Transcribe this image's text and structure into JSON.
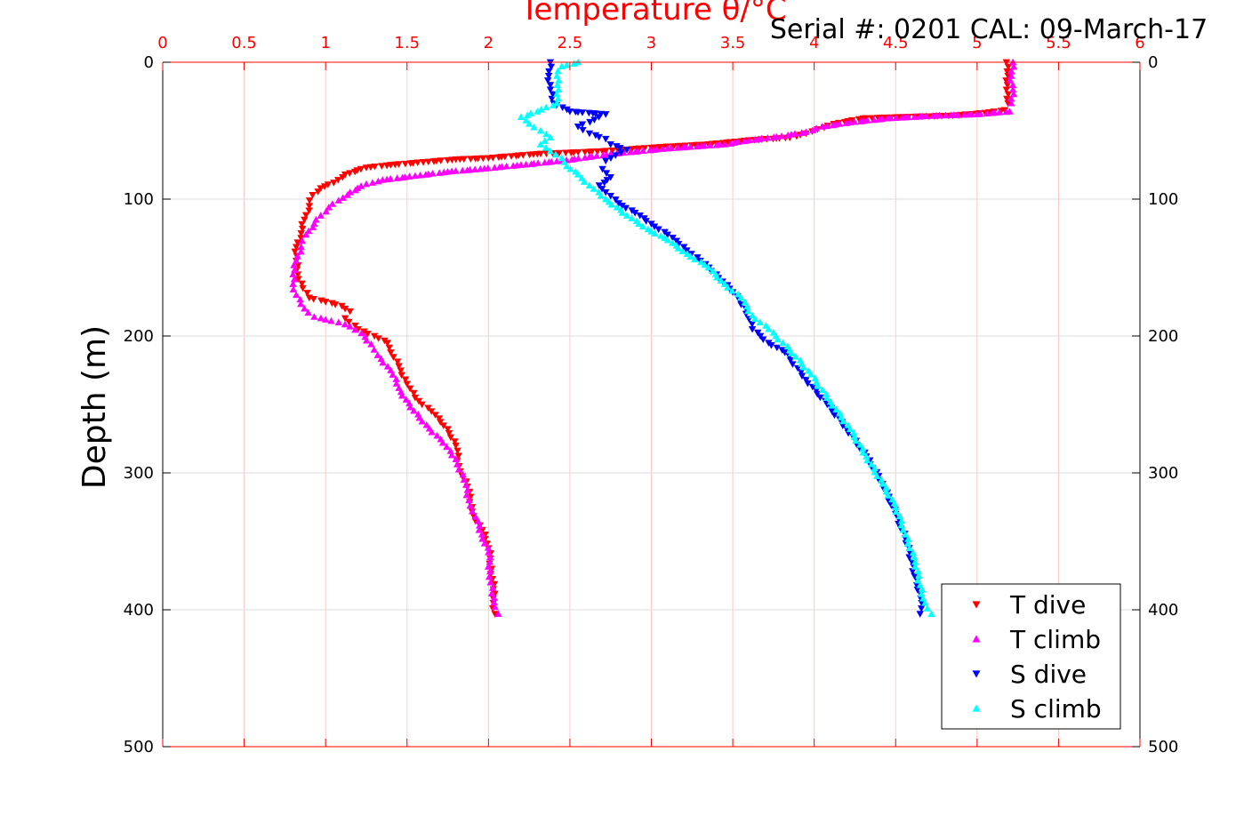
{
  "chart_data": {
    "type": "scatter",
    "title": "Temperature θ/°C",
    "header_text": "Serial #: 0201  CAL: 09-March-17",
    "ylabel": "Depth (m)",
    "xlim": [
      0,
      6
    ],
    "ylim": [
      0,
      500
    ],
    "y_reversed": true,
    "x_ticks": [
      0,
      0.5,
      1,
      1.5,
      2,
      2.5,
      3,
      3.5,
      4,
      4.5,
      5,
      5.5,
      6
    ],
    "x_tick_labels": [
      "0",
      "0.5",
      "1",
      "1.5",
      "2",
      "2.5",
      "3",
      "3.5",
      "4",
      "4.5",
      "5",
      "5.5",
      "6"
    ],
    "y_ticks": [
      0,
      100,
      200,
      300,
      400,
      500
    ],
    "y_tick_labels": [
      "0",
      "100",
      "200",
      "300",
      "400",
      "500"
    ],
    "grid": true,
    "legend_position": "bottom-right",
    "colors": {
      "axis_top": "#ff0000",
      "axis_other": "#000000",
      "x_grid": "#ffc8c8",
      "y_grid": "#dcdcdc"
    },
    "series": [
      {
        "name": "T dive",
        "marker": "triangle-down",
        "color": "#ff0000",
        "points": [
          [
            5.18,
            0
          ],
          [
            5.19,
            10
          ],
          [
            5.18,
            20
          ],
          [
            5.19,
            30
          ],
          [
            5.17,
            35
          ],
          [
            5.05,
            37
          ],
          [
            4.85,
            39
          ],
          [
            4.55,
            40
          ],
          [
            4.3,
            41
          ],
          [
            4.12,
            45
          ],
          [
            4.02,
            49
          ],
          [
            3.95,
            52
          ],
          [
            3.85,
            55
          ],
          [
            3.6,
            57
          ],
          [
            3.35,
            60
          ],
          [
            3.05,
            62
          ],
          [
            2.7,
            65
          ],
          [
            2.3,
            67
          ],
          [
            2.0,
            70
          ],
          [
            1.8,
            71
          ],
          [
            1.6,
            73
          ],
          [
            1.4,
            75
          ],
          [
            1.25,
            77
          ],
          [
            1.12,
            82
          ],
          [
            1.05,
            88
          ],
          [
            0.97,
            92
          ],
          [
            0.92,
            97
          ],
          [
            0.9,
            105
          ],
          [
            0.87,
            115
          ],
          [
            0.85,
            125
          ],
          [
            0.82,
            135
          ],
          [
            0.82,
            145
          ],
          [
            0.83,
            155
          ],
          [
            0.86,
            165
          ],
          [
            0.9,
            172
          ],
          [
            1.0,
            175
          ],
          [
            1.1,
            178
          ],
          [
            1.15,
            182
          ],
          [
            1.12,
            187
          ],
          [
            1.2,
            195
          ],
          [
            1.3,
            200
          ],
          [
            1.38,
            205
          ],
          [
            1.4,
            212
          ],
          [
            1.45,
            222
          ],
          [
            1.5,
            235
          ],
          [
            1.55,
            245
          ],
          [
            1.65,
            255
          ],
          [
            1.75,
            268
          ],
          [
            1.8,
            280
          ],
          [
            1.82,
            295
          ],
          [
            1.87,
            310
          ],
          [
            1.9,
            325
          ],
          [
            1.92,
            335
          ],
          [
            1.98,
            345
          ],
          [
            2.0,
            355
          ],
          [
            2.02,
            370
          ],
          [
            2.03,
            385
          ],
          [
            2.03,
            395
          ],
          [
            2.04,
            403
          ]
        ]
      },
      {
        "name": "T climb",
        "marker": "triangle-up",
        "color": "#ff00ff",
        "points": [
          [
            5.22,
            0
          ],
          [
            5.21,
            10
          ],
          [
            5.22,
            20
          ],
          [
            5.21,
            30
          ],
          [
            5.2,
            36
          ],
          [
            5.0,
            38
          ],
          [
            4.75,
            39
          ],
          [
            4.45,
            41
          ],
          [
            4.22,
            44
          ],
          [
            4.05,
            47
          ],
          [
            3.95,
            51
          ],
          [
            3.8,
            54
          ],
          [
            3.6,
            57
          ],
          [
            3.45,
            60
          ],
          [
            3.1,
            63
          ],
          [
            2.75,
            67
          ],
          [
            2.45,
            72
          ],
          [
            2.2,
            75
          ],
          [
            1.95,
            78
          ],
          [
            1.75,
            80
          ],
          [
            1.55,
            83
          ],
          [
            1.35,
            86
          ],
          [
            1.25,
            89
          ],
          [
            1.15,
            95
          ],
          [
            1.08,
            101
          ],
          [
            1.02,
            106
          ],
          [
            0.97,
            112
          ],
          [
            0.93,
            118
          ],
          [
            0.88,
            126
          ],
          [
            0.85,
            135
          ],
          [
            0.82,
            145
          ],
          [
            0.8,
            155
          ],
          [
            0.8,
            162
          ],
          [
            0.82,
            170
          ],
          [
            0.87,
            180
          ],
          [
            0.93,
            186
          ],
          [
            1.0,
            188
          ],
          [
            1.08,
            190
          ],
          [
            1.15,
            193
          ],
          [
            1.22,
            198
          ],
          [
            1.28,
            206
          ],
          [
            1.32,
            214
          ],
          [
            1.4,
            225
          ],
          [
            1.45,
            238
          ],
          [
            1.52,
            252
          ],
          [
            1.62,
            265
          ],
          [
            1.72,
            278
          ],
          [
            1.8,
            290
          ],
          [
            1.85,
            305
          ],
          [
            1.88,
            320
          ],
          [
            1.92,
            332
          ],
          [
            1.96,
            345
          ],
          [
            2.0,
            358
          ],
          [
            2.01,
            372
          ],
          [
            2.02,
            388
          ],
          [
            2.04,
            398
          ],
          [
            2.06,
            403
          ]
        ]
      },
      {
        "name": "S dive",
        "marker": "triangle-down",
        "color": "#0000ff",
        "points": [
          [
            2.38,
            0
          ],
          [
            2.37,
            10
          ],
          [
            2.38,
            20
          ],
          [
            2.4,
            30
          ],
          [
            2.5,
            36
          ],
          [
            2.72,
            38
          ],
          [
            2.65,
            42
          ],
          [
            2.55,
            47
          ],
          [
            2.62,
            52
          ],
          [
            2.72,
            56
          ],
          [
            2.75,
            60
          ],
          [
            2.85,
            64
          ],
          [
            2.78,
            68
          ],
          [
            2.72,
            72
          ],
          [
            2.7,
            78
          ],
          [
            2.75,
            84
          ],
          [
            2.68,
            90
          ],
          [
            2.72,
            95
          ],
          [
            2.8,
            103
          ],
          [
            2.9,
            110
          ],
          [
            3.0,
            118
          ],
          [
            3.1,
            126
          ],
          [
            3.2,
            135
          ],
          [
            3.3,
            145
          ],
          [
            3.4,
            155
          ],
          [
            3.5,
            168
          ],
          [
            3.58,
            180
          ],
          [
            3.62,
            195
          ],
          [
            3.72,
            205
          ],
          [
            3.82,
            212
          ],
          [
            3.95,
            232
          ],
          [
            4.08,
            250
          ],
          [
            4.2,
            268
          ],
          [
            4.32,
            288
          ],
          [
            4.42,
            308
          ],
          [
            4.5,
            330
          ],
          [
            4.56,
            348
          ],
          [
            4.6,
            365
          ],
          [
            4.63,
            382
          ],
          [
            4.66,
            395
          ],
          [
            4.65,
            403
          ]
        ]
      },
      {
        "name": "S climb",
        "marker": "triangle-up",
        "color": "#00ffff",
        "points": [
          [
            2.55,
            0
          ],
          [
            2.45,
            3
          ],
          [
            2.42,
            10
          ],
          [
            2.43,
            20
          ],
          [
            2.42,
            30
          ],
          [
            2.3,
            36
          ],
          [
            2.2,
            40
          ],
          [
            2.25,
            45
          ],
          [
            2.32,
            50
          ],
          [
            2.38,
            55
          ],
          [
            2.32,
            60
          ],
          [
            2.38,
            65
          ],
          [
            2.45,
            70
          ],
          [
            2.48,
            76
          ],
          [
            2.55,
            82
          ],
          [
            2.62,
            90
          ],
          [
            2.72,
            100
          ],
          [
            2.85,
            112
          ],
          [
            2.98,
            122
          ],
          [
            3.1,
            130
          ],
          [
            3.22,
            140
          ],
          [
            3.35,
            150
          ],
          [
            3.45,
            162
          ],
          [
            3.55,
            172
          ],
          [
            3.62,
            185
          ],
          [
            3.72,
            195
          ],
          [
            3.85,
            210
          ],
          [
            3.98,
            228
          ],
          [
            4.1,
            248
          ],
          [
            4.22,
            268
          ],
          [
            4.32,
            288
          ],
          [
            4.42,
            308
          ],
          [
            4.5,
            325
          ],
          [
            4.56,
            345
          ],
          [
            4.62,
            365
          ],
          [
            4.65,
            382
          ],
          [
            4.68,
            395
          ],
          [
            4.72,
            403
          ]
        ]
      }
    ]
  }
}
